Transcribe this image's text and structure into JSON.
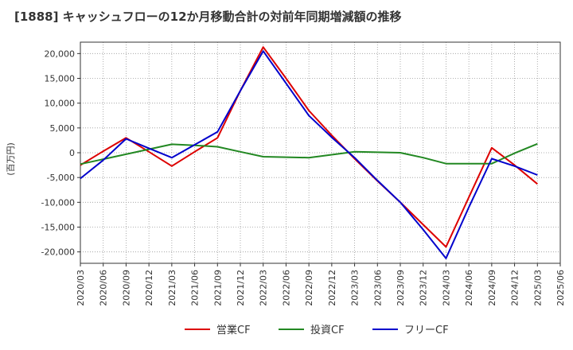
{
  "chart_data": {
    "type": "line",
    "title": "[1888]  キャッシュフローの12か月移動合計の対前年同期増減額の推移",
    "ylabel": "(百万円)",
    "xlabel": "",
    "categories": [
      "2020/03",
      "2020/06",
      "2020/09",
      "2020/12",
      "2021/03",
      "2021/06",
      "2021/09",
      "2021/12",
      "2022/03",
      "2022/06",
      "2022/09",
      "2022/12",
      "2023/03",
      "2023/06",
      "2023/09",
      "2023/12",
      "2024/03",
      "2024/06",
      "2024/09",
      "2024/12",
      "2025/03",
      "2025/06"
    ],
    "y_ticks": [
      20000,
      15000,
      10000,
      5000,
      0,
      -5000,
      -10000,
      -15000,
      -20000
    ],
    "y_tick_labels": [
      "20,000",
      "15,000",
      "10,000",
      "5,000",
      "0",
      "-5,000",
      "-10,000",
      "-15,000",
      "-20,000"
    ],
    "ylim": [
      -22300,
      22300
    ],
    "grid": true,
    "legend_position": "bottom",
    "series": [
      {
        "name": "営業CF",
        "color": "#dd0000",
        "values": [
          -2500,
          300,
          3000,
          200,
          -2700,
          200,
          3000,
          12500,
          21300,
          15000,
          8500,
          3500,
          -1200,
          -5700,
          -10000,
          -14500,
          -19000,
          -9000,
          1000,
          -2500,
          -6300,
          null
        ]
      },
      {
        "name": "投資CF",
        "color": "#228822",
        "values": [
          -2300,
          -1300,
          -300,
          700,
          1700,
          1500,
          1200,
          200,
          -800,
          -900,
          -1000,
          -400,
          200,
          100,
          0,
          -1000,
          -2200,
          -2200,
          -2200,
          -100,
          1800,
          null
        ]
      },
      {
        "name": "フリーCF",
        "color": "#0000cc",
        "values": [
          -5200,
          -1500,
          2800,
          900,
          -1000,
          1600,
          4200,
          12500,
          20500,
          14000,
          7500,
          3100,
          -1000,
          -5600,
          -10000,
          -15500,
          -21300,
          -11000,
          -1200,
          -2700,
          -4500,
          null
        ]
      }
    ]
  }
}
